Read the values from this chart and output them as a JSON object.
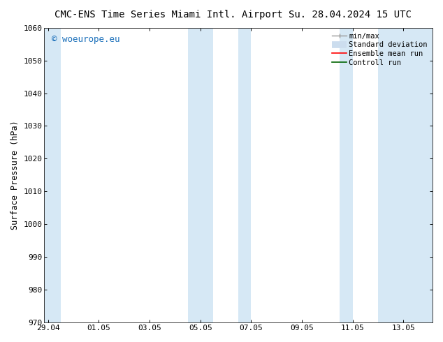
{
  "title_left": "CMC-ENS Time Series Miami Intl. Airport",
  "title_right": "Su. 28.04.2024 15 UTC",
  "ylabel": "Surface Pressure (hPa)",
  "ylim": [
    970,
    1060
  ],
  "yticks": [
    970,
    980,
    990,
    1000,
    1010,
    1020,
    1030,
    1040,
    1050,
    1060
  ],
  "xtick_labels": [
    "29.04",
    "01.05",
    "03.05",
    "05.05",
    "07.05",
    "09.05",
    "11.05",
    "13.05"
  ],
  "xtick_positions": [
    0,
    2,
    4,
    6,
    8,
    10,
    12,
    14
  ],
  "xlim": [
    -0.15,
    15.15
  ],
  "shaded_bands": [
    {
      "x_start": -0.15,
      "x_end": 0.5,
      "color": "#d6e8f5"
    },
    {
      "x_start": 5.5,
      "x_end": 6.5,
      "color": "#d6e8f5"
    },
    {
      "x_start": 7.5,
      "x_end": 8.0,
      "color": "#d6e8f5"
    },
    {
      "x_start": 11.5,
      "x_end": 12.0,
      "color": "#d6e8f5"
    },
    {
      "x_start": 13.0,
      "x_end": 15.15,
      "color": "#d6e8f5"
    }
  ],
  "watermark_text": "© woeurope.eu",
  "watermark_color": "#1a6fba",
  "watermark_fontsize": 9,
  "bg_color": "#ffffff",
  "plot_bg_color": "#ffffff",
  "grid_color": "#bbbbbb",
  "title_fontsize": 10,
  "tick_fontsize": 8,
  "label_fontsize": 8.5,
  "font_family": "DejaVu Sans Mono"
}
